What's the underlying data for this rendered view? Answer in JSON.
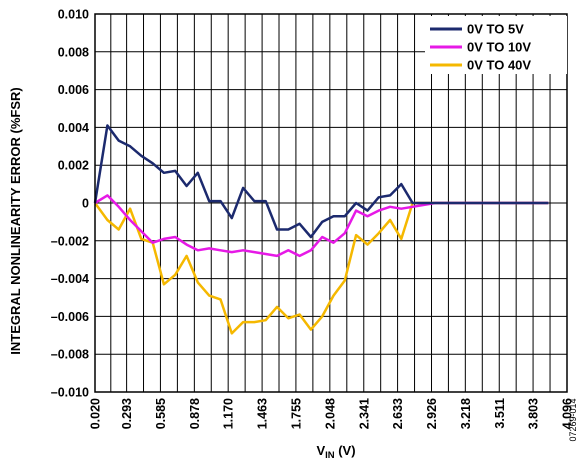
{
  "chart_data": {
    "type": "line",
    "xlabel": {
      "main": "V",
      "sub": "IN",
      "suffix": " (V)"
    },
    "ylabel": "INTEGRAL NONLINEARITY ERROR (%FSR)",
    "xlim": [
      0.02,
      4.096
    ],
    "ylim": [
      -0.01,
      0.01
    ],
    "x_ticks": [
      0.02,
      0.293,
      0.585,
      0.878,
      1.17,
      1.463,
      1.755,
      2.048,
      2.341,
      2.633,
      2.926,
      3.218,
      3.511,
      3.803,
      4.096
    ],
    "x_tick_labels": [
      "0.020",
      "0.293",
      "0.585",
      "0.878",
      "1.170",
      "1.463",
      "1.755",
      "2.048",
      "2.341",
      "2.633",
      "2.926",
      "3.218",
      "3.511",
      "3.803",
      "4.096"
    ],
    "y_ticks": [
      -0.01,
      -0.008,
      -0.006,
      -0.004,
      -0.002,
      0,
      0.002,
      0.004,
      0.006,
      0.008,
      0.01
    ],
    "y_tick_labels": [
      "–0.010",
      "–0.008",
      "–0.006",
      "–0.004",
      "–0.002",
      "0",
      "0.002",
      "0.004",
      "0.006",
      "0.008",
      "0.010"
    ],
    "grid": true,
    "legend_position": "top-right",
    "series": [
      {
        "name": "0V TO 5V",
        "color": "#1c2a6e",
        "x": [
          0.02,
          0.127,
          0.225,
          0.323,
          0.42,
          0.518,
          0.615,
          0.713,
          0.811,
          0.908,
          1.006,
          1.104,
          1.201,
          1.299,
          1.396,
          1.494,
          1.592,
          1.689,
          1.787,
          1.884,
          1.982,
          2.08,
          2.177,
          2.275,
          2.373,
          2.47,
          2.568,
          2.665,
          2.763,
          2.861,
          2.958,
          3.056,
          3.154,
          3.251,
          3.349,
          3.446,
          3.544,
          3.642,
          3.739,
          3.837,
          3.935
        ],
        "values": [
          0.0,
          0.0041,
          0.0033,
          0.003,
          0.0025,
          0.0021,
          0.0016,
          0.0017,
          0.0009,
          0.0016,
          0.0001,
          0.0001,
          -0.0008,
          0.0008,
          0.0001,
          0.0001,
          -0.0014,
          -0.0014,
          -0.0011,
          -0.0018,
          -0.001,
          -0.0007,
          -0.0007,
          0.0,
          -0.0004,
          0.0003,
          0.0004,
          0.001,
          0.0,
          0.0,
          0.0,
          0.0,
          0.0,
          0.0,
          0.0,
          0.0,
          0.0,
          0.0,
          0.0,
          0.0,
          0.0
        ]
      },
      {
        "name": "0V TO 10V",
        "color": "#e619e6",
        "x": [
          0.02,
          0.127,
          0.225,
          0.323,
          0.42,
          0.518,
          0.615,
          0.713,
          0.811,
          0.908,
          1.006,
          1.104,
          1.201,
          1.299,
          1.396,
          1.494,
          1.592,
          1.689,
          1.787,
          1.884,
          1.982,
          2.08,
          2.177,
          2.275,
          2.373,
          2.47,
          2.568,
          2.665,
          2.763,
          2.861,
          2.958,
          3.056,
          3.154,
          3.251,
          3.349,
          3.446,
          3.544,
          3.642,
          3.739,
          3.837,
          3.935
        ],
        "values": [
          0.0,
          0.0004,
          -0.0002,
          -0.0009,
          -0.0015,
          -0.0021,
          -0.0019,
          -0.0018,
          -0.0022,
          -0.0025,
          -0.0024,
          -0.0025,
          -0.0026,
          -0.0025,
          -0.0026,
          -0.0027,
          -0.0028,
          -0.0025,
          -0.0028,
          -0.0025,
          -0.0018,
          -0.0021,
          -0.0016,
          -0.0004,
          -0.0007,
          -0.0004,
          -0.0002,
          -0.0003,
          -0.0002,
          -0.0001,
          0.0,
          0.0,
          0.0,
          0.0,
          0.0,
          0.0,
          0.0,
          0.0,
          0.0,
          0.0,
          0.0
        ]
      },
      {
        "name": "0V TO 40V",
        "color": "#f5b800",
        "x": [
          0.02,
          0.127,
          0.225,
          0.323,
          0.42,
          0.518,
          0.615,
          0.713,
          0.811,
          0.908,
          1.006,
          1.104,
          1.201,
          1.299,
          1.396,
          1.494,
          1.592,
          1.689,
          1.787,
          1.884,
          1.982,
          2.08,
          2.177,
          2.275,
          2.373,
          2.47,
          2.568,
          2.665,
          2.763,
          2.861,
          2.958,
          3.056,
          3.154,
          3.251,
          3.349,
          3.446,
          3.544,
          3.642,
          3.739,
          3.837,
          3.935
        ],
        "values": [
          0.0,
          -0.0009,
          -0.0014,
          -0.0003,
          -0.0019,
          -0.0021,
          -0.0043,
          -0.0038,
          -0.0028,
          -0.0042,
          -0.0049,
          -0.0051,
          -0.0069,
          -0.0063,
          -0.0063,
          -0.0062,
          -0.0055,
          -0.0061,
          -0.0059,
          -0.0067,
          -0.006,
          -0.0049,
          -0.0041,
          -0.0017,
          -0.0022,
          -0.0016,
          -0.0009,
          -0.0019,
          0.0,
          0.0,
          0.0,
          0.0,
          0.0,
          0.0,
          0.0,
          0.0,
          0.0,
          0.0,
          0.0,
          0.0,
          0.0
        ]
      }
    ]
  },
  "figure_id": "07269-014"
}
